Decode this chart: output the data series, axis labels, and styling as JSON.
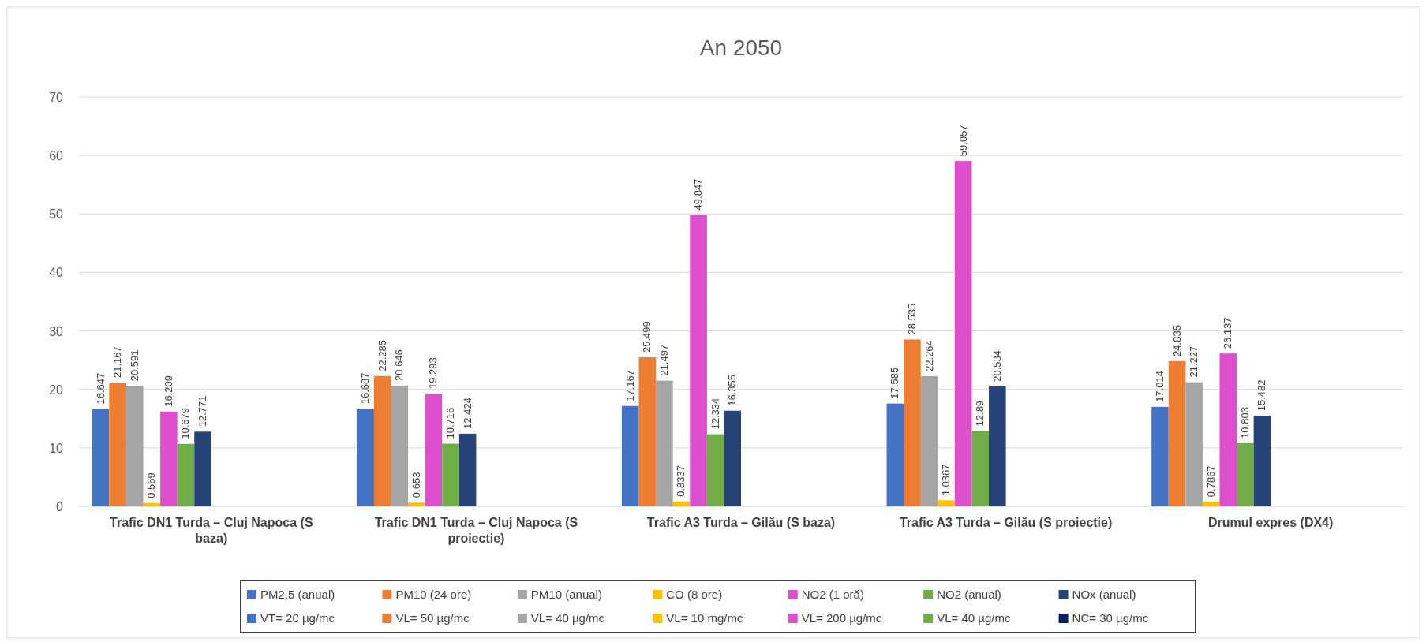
{
  "chart_data": {
    "type": "bar",
    "title": "An 2050",
    "categories": [
      "Trafic DN1 Turda – Cluj Napoca (S baza)",
      "Trafic DN1 Turda – Cluj Napoca (S proiectie)",
      "Trafic A3 Turda – Gilău (S baza)",
      "Trafic A3 Turda – Gilău (S proiectie)",
      "Drumul expres (DX4)"
    ],
    "series": [
      {
        "name": "PM2,5 (anual)",
        "color": "#4472c4",
        "values": [
          16.647,
          16.687,
          17.167,
          17.585,
          17.014
        ]
      },
      {
        "name": "PM10 (24 ore)",
        "color": "#ed7d31",
        "values": [
          21.167,
          22.285,
          25.499,
          28.535,
          24.835
        ]
      },
      {
        "name": "PM10 (anual)",
        "color": "#a5a5a5",
        "values": [
          20.591,
          20.646,
          21.497,
          22.264,
          21.227
        ]
      },
      {
        "name": "CO (8 ore)",
        "color": "#ffc000",
        "values": [
          0.569,
          0.653,
          0.8337,
          1.0367,
          0.7867
        ]
      },
      {
        "name": "NO2 (1 oră)",
        "color": "#dd4fcf",
        "values": [
          16.209,
          19.293,
          49.847,
          59.057,
          26.137
        ]
      },
      {
        "name": "NO2 (anual)",
        "color": "#70ad47",
        "values": [
          10.679,
          10.716,
          12.334,
          12.89,
          10.803
        ]
      },
      {
        "name": "NOx (anual)",
        "color": "#264478",
        "values": [
          12.771,
          12.424,
          16.355,
          20.534,
          15.482
        ]
      },
      {
        "name": "VT= 20 µg/mc",
        "color": "#4472c4",
        "values": [
          null,
          null,
          null,
          null,
          null
        ]
      },
      {
        "name": "VL= 50 µg/mc",
        "color": "#ed7d31",
        "values": [
          null,
          null,
          null,
          null,
          null
        ]
      },
      {
        "name": "VL= 40 µg/mc",
        "color": "#a5a5a5",
        "values": [
          null,
          null,
          null,
          null,
          null
        ]
      },
      {
        "name": "VL= 10 mg/mc",
        "color": "#ffc000",
        "values": [
          null,
          null,
          null,
          null,
          null
        ]
      },
      {
        "name": "VL= 200 µg/mc",
        "color": "#dd4fcf",
        "values": [
          null,
          null,
          null,
          null,
          null
        ]
      },
      {
        "name": "VL= 40 µg/mc",
        "color": "#70ad47",
        "values": [
          null,
          null,
          null,
          null,
          null
        ]
      },
      {
        "name": "NC= 30 µg/mc",
        "color": "#002060",
        "values": [
          null,
          null,
          null,
          null,
          null
        ]
      }
    ],
    "ylim": [
      0,
      70
    ],
    "yticks": [
      0,
      10,
      20,
      30,
      40,
      50,
      60,
      70
    ],
    "grid": "y",
    "legend": "bottom",
    "data_labels": true
  }
}
